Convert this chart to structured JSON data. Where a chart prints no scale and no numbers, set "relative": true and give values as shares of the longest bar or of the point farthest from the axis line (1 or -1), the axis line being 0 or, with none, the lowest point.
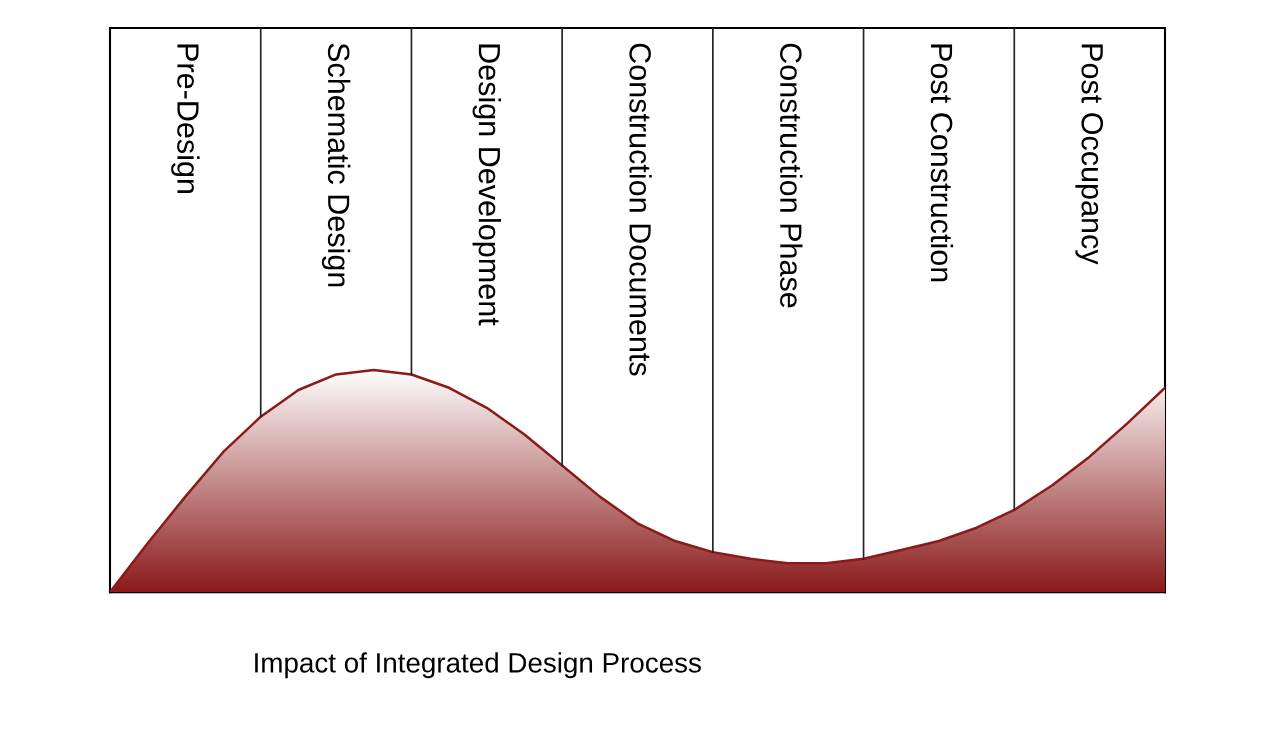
{
  "chart_data": {
    "type": "area",
    "relative": true,
    "grid": "x",
    "categories": [
      null,
      null,
      null,
      null,
      null,
      null,
      null,
      null,
      null,
      null,
      null,
      null,
      null,
      null,
      null,
      null,
      null,
      null,
      null,
      null,
      null,
      null,
      null,
      null,
      null,
      null,
      null,
      null,
      null
    ],
    "series": [
      {
        "color": "#8b1a1a",
        "values": [
          0,
          0.22,
          0.43,
          0.63,
          0.79,
          0.91,
          0.98,
          1,
          0.98,
          0.92,
          0.83,
          0.71,
          0.57,
          0.43,
          0.31,
          0.23,
          0.18,
          0.15,
          0.13,
          0.13,
          0.15,
          0.19,
          0.23,
          0.29,
          0.37,
          0.48,
          0.61,
          0.76,
          0.92
        ]
      }
    ],
    "annotations": [
      "Pre-Design",
      "Schematic Design",
      "Design Development",
      "Construction Documents",
      "Construction Phase",
      "Post Construction",
      "Post Occupancy",
      "Impact of Integrated Design Process"
    ]
  }
}
